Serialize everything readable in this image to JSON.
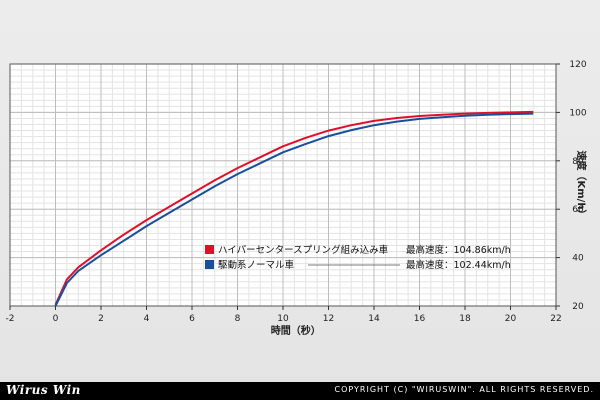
{
  "chart_data": {
    "type": "line",
    "title": "",
    "xlabel": "時間（秒）",
    "ylabel": "速度（Km/h）",
    "xlim": [
      -2,
      22
    ],
    "ylim": [
      20,
      120
    ],
    "x_ticks": [
      -2,
      0,
      2,
      4,
      6,
      8,
      10,
      12,
      14,
      16,
      18,
      20,
      22
    ],
    "y_ticks": [
      20,
      40,
      60,
      80,
      100,
      120
    ],
    "y_axis_side": "right",
    "grid": true,
    "legend_position": "center-right",
    "series": [
      {
        "name": "ハイパーセンタースプリング組み込み車",
        "color": "#e0102a",
        "legend_note": "最高速度：104.86km/h",
        "x": [
          0,
          0.5,
          1,
          2,
          3,
          4,
          5,
          6,
          7,
          8,
          9,
          10,
          11,
          12,
          13,
          14,
          15,
          16,
          17,
          18,
          19,
          20,
          21
        ],
        "y": [
          20.5,
          31,
          36,
          43,
          49.5,
          55.5,
          61,
          66.5,
          72,
          77,
          81.5,
          86,
          89.5,
          92.5,
          94.7,
          96.5,
          97.7,
          98.5,
          99,
          99.5,
          99.8,
          100,
          100.2
        ]
      },
      {
        "name": "駆動系ノーマル車",
        "color": "#1b4f9c",
        "legend_note": "最高速度：102.44km/h",
        "x": [
          0,
          0.5,
          1,
          2,
          3,
          4,
          5,
          6,
          7,
          8,
          9,
          10,
          11,
          12,
          13,
          14,
          15,
          16,
          17,
          18,
          19,
          20,
          21
        ],
        "y": [
          20,
          29.5,
          34.5,
          41,
          47,
          53,
          58.5,
          64,
          69.5,
          74.5,
          79,
          83.5,
          87,
          90.2,
          92.7,
          94.7,
          96.2,
          97.3,
          98,
          98.6,
          99,
          99.3,
          99.5
        ]
      }
    ]
  },
  "footer": {
    "logo": "Wirus Win",
    "copyright": "COPYRIGHT (C) \"WIRUSWIN\". ALL RIGHTS RESERVED."
  }
}
